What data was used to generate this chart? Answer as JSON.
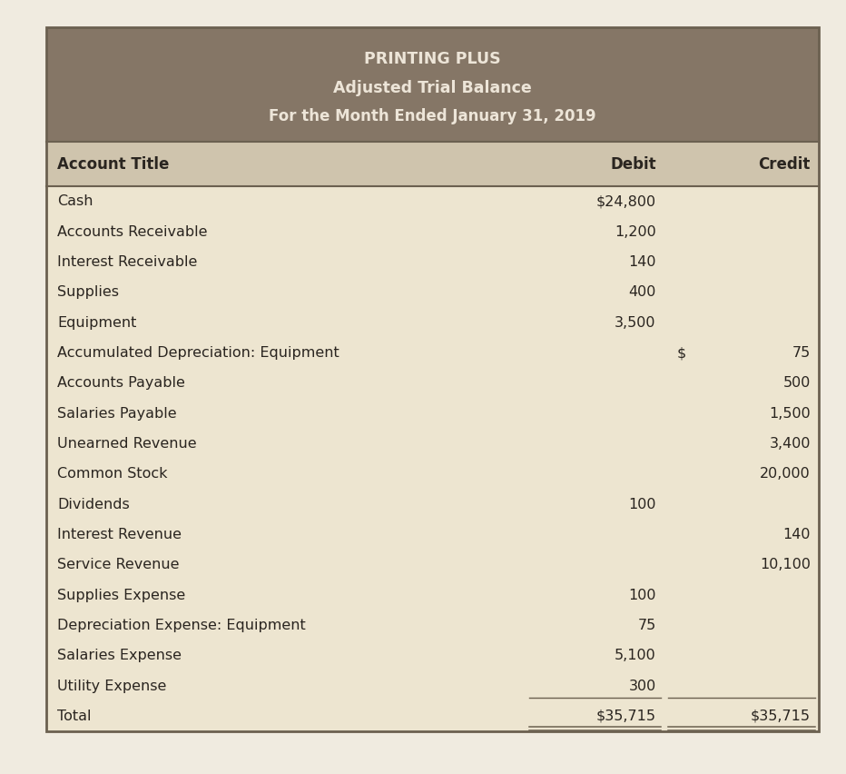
{
  "title_line1": "PRINTING PLUS",
  "title_line2": "Adjusted Trial Balance",
  "title_line3": "For the Month Ended January 31, 2019",
  "header_bg": "#857666",
  "header_text_color": "#EDE5D8",
  "col_header_bg": "#CFC4AD",
  "body_bg": "#EDE5D0",
  "border_color": "#6B6050",
  "text_color": "#2A2520",
  "fig_bg": "#F0EBE0",
  "col_headers": [
    "Account Title",
    "Debit",
    "Credit"
  ],
  "rows": [
    {
      "account": "Cash",
      "debit": "$24,800",
      "credit": ""
    },
    {
      "account": "Accounts Receivable",
      "debit": "1,200",
      "credit": ""
    },
    {
      "account": "Interest Receivable",
      "debit": "140",
      "credit": ""
    },
    {
      "account": "Supplies",
      "debit": "400",
      "credit": ""
    },
    {
      "account": "Equipment",
      "debit": "3,500",
      "credit": ""
    },
    {
      "account": "Accumulated Depreciation: Equipment",
      "debit": "",
      "credit_dollar": true,
      "credit": "75"
    },
    {
      "account": "Accounts Payable",
      "debit": "",
      "credit": "500"
    },
    {
      "account": "Salaries Payable",
      "debit": "",
      "credit": "1,500"
    },
    {
      "account": "Unearned Revenue",
      "debit": "",
      "credit": "3,400"
    },
    {
      "account": "Common Stock",
      "debit": "",
      "credit": "20,000"
    },
    {
      "account": "Dividends",
      "debit": "100",
      "credit": ""
    },
    {
      "account": "Interest Revenue",
      "debit": "",
      "credit": "140"
    },
    {
      "account": "Service Revenue",
      "debit": "",
      "credit": "10,100"
    },
    {
      "account": "Supplies Expense",
      "debit": "100",
      "credit": ""
    },
    {
      "account": "Depreciation Expense: Equipment",
      "debit": "75",
      "credit": ""
    },
    {
      "account": "Salaries Expense",
      "debit": "5,100",
      "credit": ""
    },
    {
      "account": "Utility Expense",
      "debit": "300",
      "credit": ""
    },
    {
      "account": "Total",
      "debit": "$35,715",
      "credit": "$35,715"
    }
  ],
  "figsize": [
    9.32,
    8.52
  ],
  "dpi": 100
}
